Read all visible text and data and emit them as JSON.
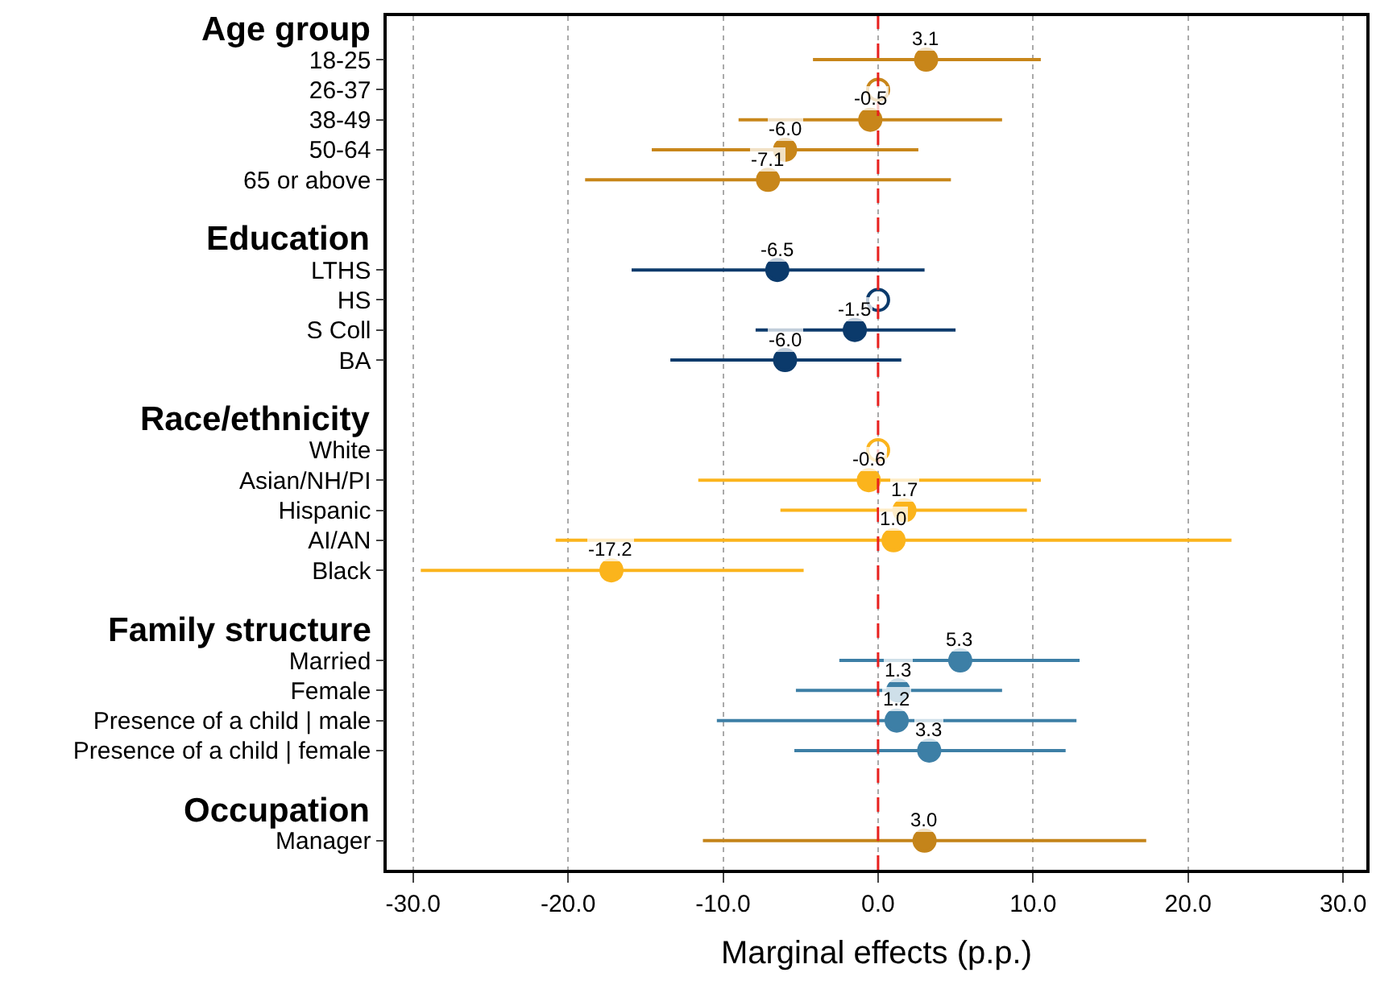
{
  "chart_data": {
    "type": "scatter",
    "orientation": "horizontal",
    "xlabel": "Marginal effects (p.p.)",
    "categories": [
      "Age group",
      "18-25",
      "26-37",
      "38-49",
      "50-64",
      "65 or above",
      null,
      "Education",
      "LTHS",
      "HS",
      "S Coll",
      "BA",
      null,
      "Race/ethnicity",
      "White",
      "Asian/NH/PI",
      "Hispanic",
      "AI/AN",
      "Black",
      null,
      "Family structure",
      "Married",
      "Female",
      "Presence of a child | male",
      "Presence of a child | female",
      null,
      "Occupation",
      "Manager"
    ],
    "series": [
      {
        "color": "#c8861a",
        "values": [
          null,
          3.1,
          0,
          -0.5,
          -6.0,
          -7.1,
          null,
          null,
          null,
          null,
          null,
          null,
          null,
          null,
          null,
          null,
          null,
          null,
          null,
          null,
          null,
          null,
          null,
          null,
          null,
          null,
          null,
          null
        ],
        "errors": [
          null,
          [
            -4.2,
            10.5
          ],
          null,
          [
            -9.0,
            8.0
          ],
          [
            -14.6,
            2.6
          ],
          [
            -18.9,
            4.7
          ],
          null,
          null,
          null,
          null,
          null,
          null,
          null,
          null,
          null,
          null,
          null,
          null,
          null,
          null,
          null,
          null,
          null,
          null,
          null,
          null,
          null,
          null
        ],
        "value_labels": [
          null,
          "3.1",
          null,
          "-0.5",
          "-6.0",
          "-7.1",
          null,
          null,
          null,
          null,
          null,
          null,
          null,
          null,
          null,
          null,
          null,
          null,
          null,
          null,
          null,
          null,
          null,
          null,
          null,
          null,
          null,
          null
        ]
      },
      {
        "color": "#0b3a6b",
        "values": [
          null,
          null,
          null,
          null,
          null,
          null,
          null,
          null,
          -6.5,
          0,
          -1.5,
          -6.0,
          null,
          null,
          null,
          null,
          null,
          null,
          null,
          null,
          null,
          null,
          null,
          null,
          null,
          null,
          null,
          null
        ],
        "errors": [
          null,
          null,
          null,
          null,
          null,
          null,
          null,
          null,
          [
            -15.9,
            3.0
          ],
          null,
          [
            -7.9,
            5.0
          ],
          [
            -13.4,
            1.5
          ],
          null,
          null,
          null,
          null,
          null,
          null,
          null,
          null,
          null,
          null,
          null,
          null,
          null,
          null,
          null,
          null
        ],
        "value_labels": [
          null,
          null,
          null,
          null,
          null,
          null,
          null,
          null,
          "-6.5",
          null,
          "-1.5",
          "-6.0",
          null,
          null,
          null,
          null,
          null,
          null,
          null,
          null,
          null,
          null,
          null,
          null,
          null,
          null,
          null,
          null
        ]
      },
      {
        "color": "#fbb41c",
        "values": [
          null,
          null,
          null,
          null,
          null,
          null,
          null,
          null,
          null,
          null,
          null,
          null,
          null,
          null,
          0,
          -0.6,
          1.7,
          1.0,
          -17.2,
          null,
          null,
          null,
          null,
          null,
          null,
          null,
          null,
          null
        ],
        "errors": [
          null,
          null,
          null,
          null,
          null,
          null,
          null,
          null,
          null,
          null,
          null,
          null,
          null,
          null,
          null,
          [
            -11.6,
            10.5
          ],
          [
            -6.3,
            9.6
          ],
          [
            -20.8,
            22.8
          ],
          [
            -29.5,
            -4.8
          ],
          null,
          null,
          null,
          null,
          null,
          null,
          null,
          null,
          null
        ],
        "value_labels": [
          null,
          null,
          null,
          null,
          null,
          null,
          null,
          null,
          null,
          null,
          null,
          null,
          null,
          null,
          null,
          "-0.6",
          "1.7",
          "1.0",
          "-17.2",
          null,
          null,
          null,
          null,
          null,
          null,
          null,
          null,
          null
        ]
      },
      {
        "color": "#3d7fa6",
        "values": [
          null,
          null,
          null,
          null,
          null,
          null,
          null,
          null,
          null,
          null,
          null,
          null,
          null,
          null,
          null,
          null,
          null,
          null,
          null,
          null,
          null,
          5.3,
          1.3,
          1.2,
          3.3,
          null,
          null,
          null
        ],
        "errors": [
          null,
          null,
          null,
          null,
          null,
          null,
          null,
          null,
          null,
          null,
          null,
          null,
          null,
          null,
          null,
          null,
          null,
          null,
          null,
          null,
          null,
          [
            -2.5,
            13.0
          ],
          [
            -5.3,
            8.0
          ],
          [
            -10.4,
            12.8
          ],
          [
            -5.4,
            12.1
          ],
          null,
          null,
          null
        ],
        "value_labels": [
          null,
          null,
          null,
          null,
          null,
          null,
          null,
          null,
          null,
          null,
          null,
          null,
          null,
          null,
          null,
          null,
          null,
          null,
          null,
          null,
          null,
          "5.3",
          "1.3",
          "1.2",
          "3.3",
          null,
          null,
          null
        ]
      },
      {
        "color": "#c4841a",
        "values": [
          null,
          null,
          null,
          null,
          null,
          null,
          null,
          null,
          null,
          null,
          null,
          null,
          null,
          null,
          null,
          null,
          null,
          null,
          null,
          null,
          null,
          null,
          null,
          null,
          null,
          null,
          null,
          3.0
        ],
        "errors": [
          null,
          null,
          null,
          null,
          null,
          null,
          null,
          null,
          null,
          null,
          null,
          null,
          null,
          null,
          null,
          null,
          null,
          null,
          null,
          null,
          null,
          null,
          null,
          null,
          null,
          null,
          null,
          [
            -11.3,
            17.3
          ]
        ],
        "value_labels": [
          null,
          null,
          null,
          null,
          null,
          null,
          null,
          null,
          null,
          null,
          null,
          null,
          null,
          null,
          null,
          null,
          null,
          null,
          null,
          null,
          null,
          null,
          null,
          null,
          null,
          null,
          null,
          "3.0"
        ]
      }
    ],
    "xlim": [
      -31.7,
      31.5
    ],
    "xticks": [
      {
        "value": -30,
        "label": "-30.0"
      },
      {
        "value": -20,
        "label": "-20.0"
      },
      {
        "value": -10,
        "label": "-10.0"
      },
      {
        "value": 0,
        "label": "0.0"
      },
      {
        "value": 10,
        "label": "10.0"
      },
      {
        "value": 20,
        "label": "20.0"
      },
      {
        "value": 30,
        "label": "30.0"
      }
    ],
    "grid": "x",
    "marker": "circle",
    "ref_lines": [
      {
        "axis": "x",
        "value": 0,
        "color": "#e8201e",
        "line_style": "dashed"
      }
    ]
  }
}
